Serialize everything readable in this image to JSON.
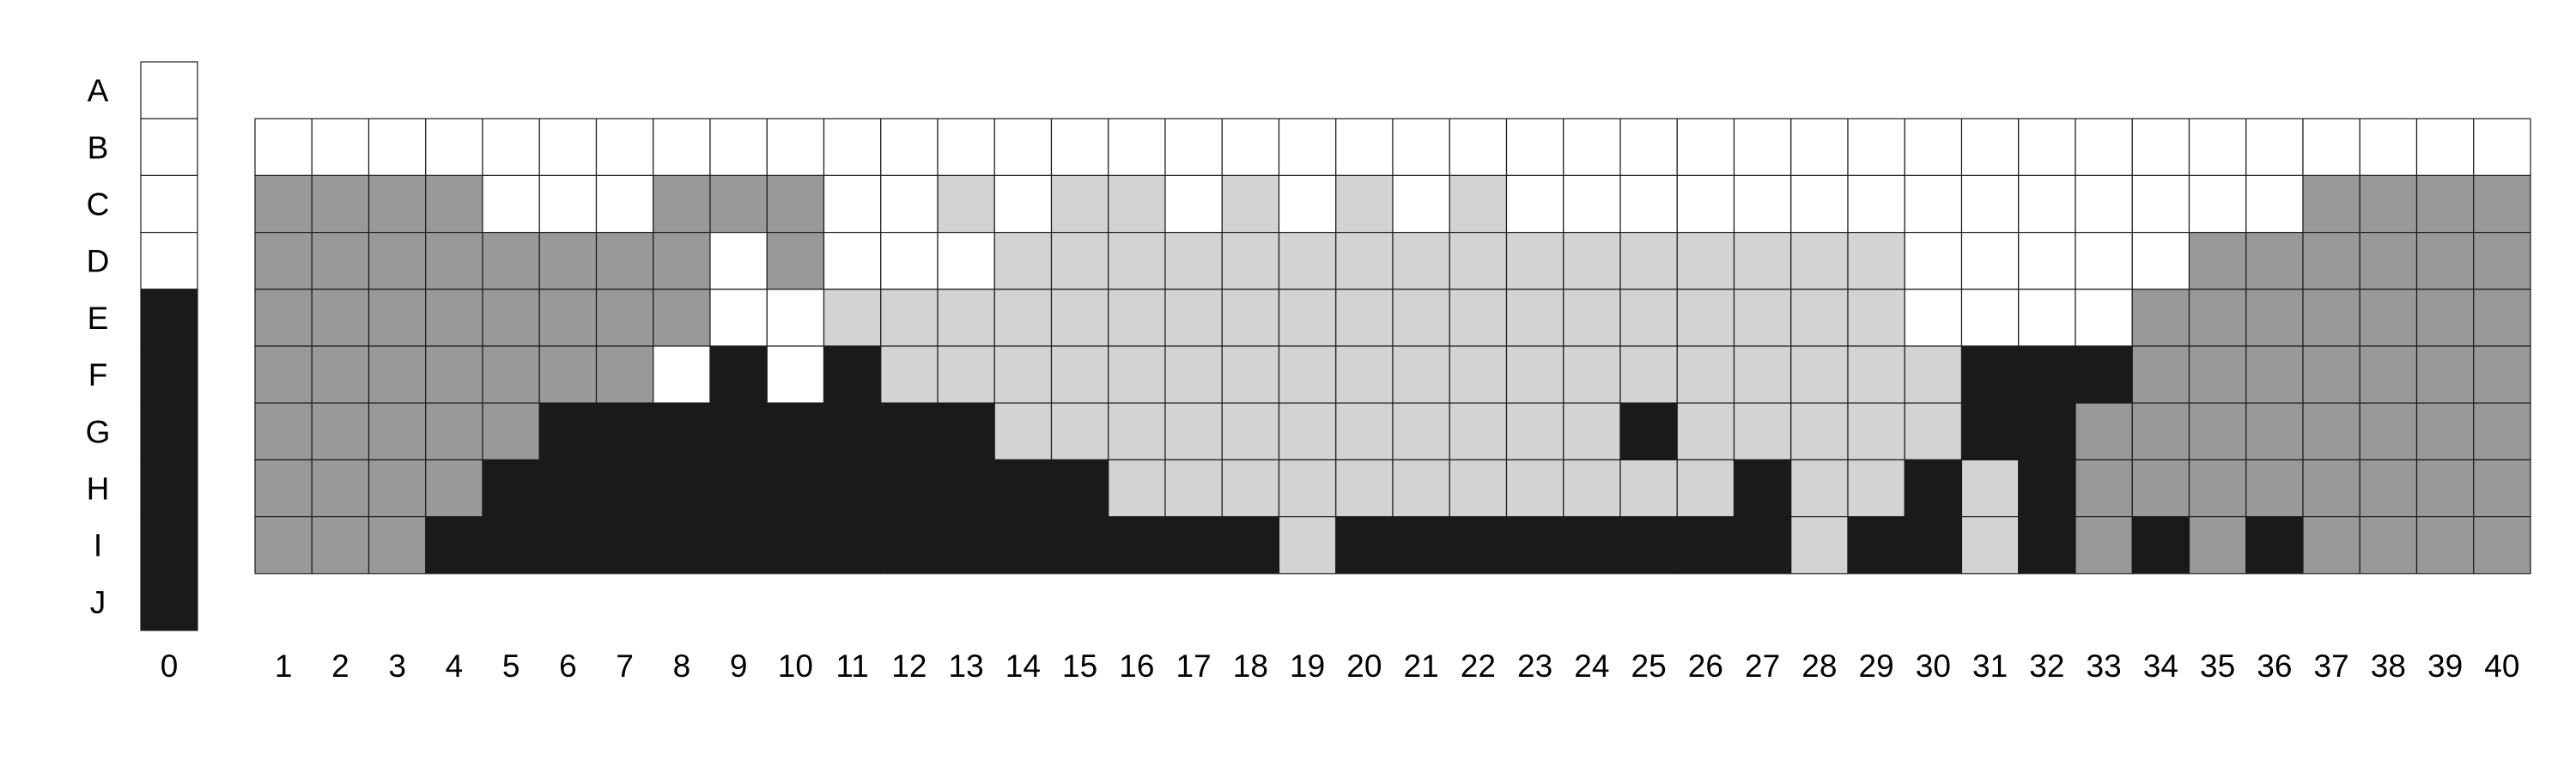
{
  "legend": {
    "values": [
      "W",
      "W",
      "W",
      "W",
      "K",
      "K",
      "K",
      "K",
      "K",
      "K"
    ],
    "column_label": "0"
  },
  "row_labels": [
    "A",
    "B",
    "C",
    "D",
    "E",
    "F",
    "G",
    "H",
    "I",
    "J"
  ],
  "column_labels": [
    "1",
    "2",
    "3",
    "4",
    "5",
    "6",
    "7",
    "8",
    "9",
    "10",
    "11",
    "12",
    "13",
    "14",
    "15",
    "16",
    "17",
    "18",
    "19",
    "20",
    "21",
    "22",
    "23",
    "24",
    "25",
    "26",
    "27",
    "28",
    "29",
    "30",
    "31",
    "32",
    "33",
    "34",
    "35",
    "36",
    "37",
    "38",
    "39",
    "40"
  ],
  "grid": {
    "first_row": "B",
    "rows": [
      "WWWWWWWWWWWWWWWWWWWWWWWWWWWWWWWWWWWWWWWW",
      "DDDDWWWDDDWWLWLLWLWLWLWWWWWWWWWWWWWWDDDD",
      "DDDDDDDDWDWWWLLLLLLLLLLLLLLLLWWWWWDDDDDD",
      "DDDDDDDDWWLLLLLLLLLLLLLLLLLLLWWWWDDDDDDD",
      "DDDDDDDWKWKLLLLLLLLLLLLLLLLLLLKKKDDDDDDD",
      "DDDDDKKKKKKKKLLLLLLLLLLLKLLLLLKKDDDDDDDD",
      "DDDDKKKKKKKKKKKLLLLLLLLLLLKLLKLKDDDDDDDD",
      "DDDKKKKKKKKKKKKKKKLKKKKKKKKLKKLKDKDKDDDD"
    ]
  },
  "colors": {
    "W": "#ffffff",
    "L": "#d3d3d3",
    "D": "#999999",
    "K": "#1a1a1a",
    "border": "#1a1a1a",
    "text": "#000000"
  }
}
